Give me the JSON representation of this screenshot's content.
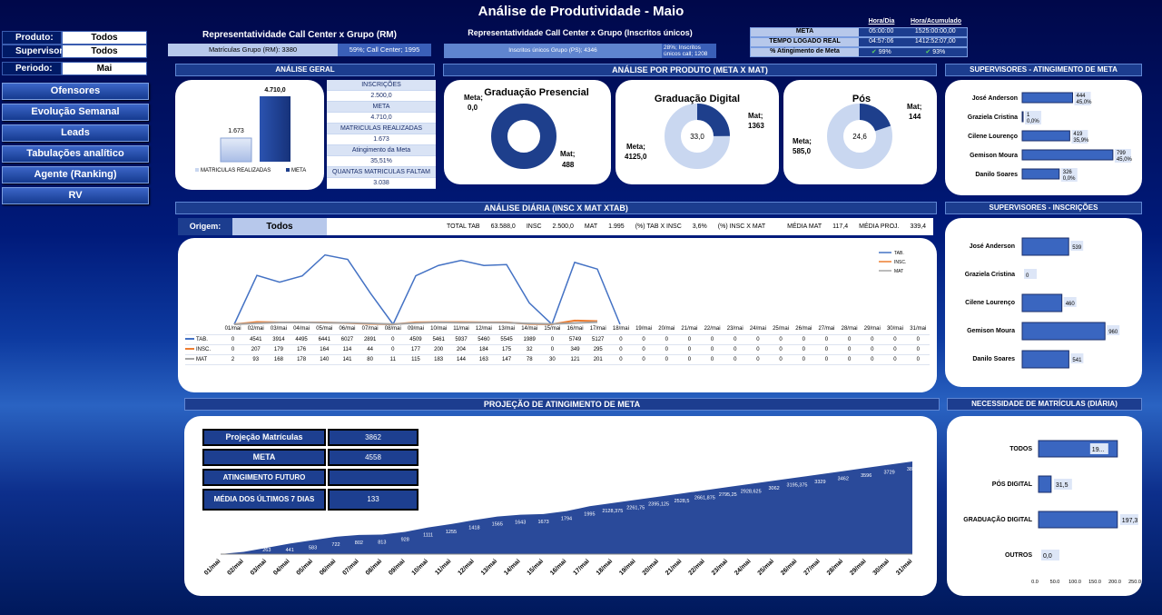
{
  "title": "Análise de Produtividade - Maio",
  "filters": [
    {
      "label": "Produto:",
      "value": "Todos"
    },
    {
      "label": "Supervisor:",
      "value": "Todos"
    },
    {
      "label": "Periodo:",
      "value": "Mai"
    }
  ],
  "nav": [
    "Ofensores",
    "Evolução Semanal",
    "Leads",
    "Tabulações analítico",
    "Agente (Ranking)",
    "RV"
  ],
  "rep_rm": {
    "title": "Representatividade  Call Center x Grupo  (RM)",
    "left": "Matrículas Grupo (RM): 3380",
    "right": "59%; Call Center; 1995"
  },
  "rep_ins": {
    "title": "Representatividade Call Center x Grupo (Inscritos únicos)",
    "left": "Inscritos únicos Grupo (PS); 4346",
    "right": "28%; Inscritos únicos call; 1208"
  },
  "meta_tbl": {
    "col1": "Hora/Dia",
    "col2": "Hora/Acumulado",
    "rows": [
      {
        "label": "META",
        "v1": "05:00:00",
        "v2": "1525:00:00,00"
      },
      {
        "label": "TEMPO LOGADO REAL",
        "v1": "04:57:06",
        "v2": "1412:52:07,00"
      },
      {
        "label": "% Atingimento de Meta",
        "v1": "99%",
        "v2": "93%"
      }
    ]
  },
  "hdr": {
    "geral": "ANÁLISE GERAL",
    "produto": "ANÁLISE POR PRODUTO (META X MAT)",
    "sup_meta": "SUPERVISORES - ATINGIMENTO DE META",
    "diaria": "ANÁLISE DIÁRIA (INSC X MAT XTAB)",
    "sup_insc": "SUPERVISORES - INSCRIÇÕES",
    "projecao": "PROJEÇÃO DE ATINGIMENTO DE META",
    "necessidade": "NECESSIDADE DE MATRÍCULAS (DIÁRIA)"
  },
  "geral": {
    "bar1_label": "1.673",
    "bar2_label": "4.710,0",
    "legend1": "MATRICULAS REALIZADAS",
    "legend2": "META",
    "kpis": [
      "INSCRIÇÕES",
      "2.500,0",
      "META",
      "4.710,0",
      "MATRICULAS REALIZADAS",
      "1.673",
      "Atingimento da Meta",
      "35,51%",
      "QUANTAS MATRICULAS FALTAM",
      "3.038"
    ]
  },
  "colors": {
    "dark": "#1e3f8c",
    "mid": "#3a66c0",
    "light": "#c9d7f0",
    "tab": "#4472c4",
    "insc": "#ed7d31",
    "mat": "#a5a5a5"
  },
  "donuts": [
    {
      "title": "Graduação  Presencial",
      "center": "",
      "meta_lbl": "Meta;",
      "meta_val": "0,0",
      "mat_lbl": "Mat;",
      "mat_val": "488",
      "meta": 0,
      "mat": 488
    },
    {
      "title": "Graduação  Digital",
      "center": "33,0",
      "meta_lbl": "Meta;",
      "meta_val": "4125,0",
      "mat_lbl": "Mat;",
      "mat_val": "1363",
      "meta": 4125,
      "mat": 1363
    },
    {
      "title": "Pós",
      "center": "24,6",
      "meta_lbl": "Meta;",
      "meta_val": "585,0",
      "mat_lbl": "Mat;",
      "mat_val": "144",
      "meta": 585,
      "mat": 144
    }
  ],
  "sup_meta": [
    {
      "name": "José Anderson",
      "value": "444",
      "pct": "45,0%",
      "n": 444
    },
    {
      "name": "Graziela Cristina",
      "value": "1",
      "pct": "0,0%",
      "n": 1
    },
    {
      "name": "Cilene Lourenço",
      "value": "419",
      "pct": "35,9%",
      "n": 419
    },
    {
      "name": "Gemison Moura",
      "value": "799",
      "pct": "45,0%",
      "n": 799
    },
    {
      "name": "Danilo Soares",
      "value": "326",
      "pct": "0,0%",
      "n": 326
    }
  ],
  "diaria": {
    "origem_lbl": "Origem:",
    "origem_val": "Todos",
    "stats": [
      {
        "k": "TOTAL TAB",
        "v": "63.588,0"
      },
      {
        "k": "INSC",
        "v": "2.500,0"
      },
      {
        "k": "MAT",
        "v": "1.995"
      },
      {
        "k": "(%) TAB X INSC",
        "v": "3,6%"
      },
      {
        "k": "(%) INSC X MAT",
        "v": ""
      },
      {
        "k": "MÉDIA MAT",
        "v": "117,4"
      },
      {
        "k": "MÉDIA PROJ.",
        "v": "339,4"
      }
    ],
    "legend": [
      "TAB.",
      "INSC.",
      "MAT"
    ]
  },
  "chart_data": [
    {
      "type": "line",
      "x": [
        "01/mai",
        "02/mai",
        "03/mai",
        "04/mai",
        "05/mai",
        "06/mai",
        "07/mai",
        "08/mai",
        "09/mai",
        "10/mai",
        "11/mai",
        "12/mai",
        "13/mai",
        "14/mai",
        "15/mai",
        "16/mai",
        "17/mai",
        "18/mai",
        "19/mai",
        "20/mai",
        "21/mai",
        "22/mai",
        "23/mai",
        "24/mai",
        "25/mai",
        "26/mai",
        "27/mai",
        "28/mai",
        "29/mai",
        "30/mai",
        "31/mai"
      ],
      "series": [
        {
          "name": "TAB.",
          "values": [
            0,
            4541,
            3914,
            4495,
            6441,
            6027,
            2891,
            0,
            4509,
            5461,
            5937,
            5460,
            5545,
            1989,
            0,
            5749,
            5127,
            0,
            0,
            0,
            0,
            0,
            0,
            0,
            0,
            0,
            0,
            0,
            0,
            0,
            0
          ]
        },
        {
          "name": "INSC.",
          "values": [
            0,
            207,
            179,
            176,
            164,
            114,
            44,
            0,
            177,
            200,
            204,
            184,
            175,
            32,
            0,
            349,
            295,
            0,
            0,
            0,
            0,
            0,
            0,
            0,
            0,
            0,
            0,
            0,
            0,
            0,
            0
          ]
        },
        {
          "name": "MAT",
          "values": [
            2,
            93,
            168,
            178,
            140,
            141,
            80,
            11,
            115,
            183,
            144,
            163,
            147,
            78,
            30,
            121,
            201,
            0,
            0,
            0,
            0,
            0,
            0,
            0,
            0,
            0,
            0,
            0,
            0,
            0,
            0
          ]
        }
      ]
    },
    {
      "type": "area",
      "x": [
        "01/mai",
        "02/mai",
        "03/mai",
        "04/mai",
        "05/mai",
        "06/mai",
        "07/mai",
        "08/mai",
        "09/mai",
        "10/mai",
        "11/mai",
        "12/mai",
        "13/mai",
        "14/mai",
        "15/mai",
        "16/mai",
        "17/mai",
        "18/mai",
        "19/mai",
        "20/mai",
        "21/mai",
        "22/mai",
        "23/mai",
        "24/mai",
        "25/mai",
        "26/mai",
        "27/mai",
        "28/mai",
        "29/mai",
        "30/mai",
        "31/mai"
      ],
      "labels": [
        "",
        "95",
        "263",
        "441",
        "583",
        "722",
        "802",
        "813",
        "928",
        "1111",
        "1255",
        "1418",
        "1565",
        "1643",
        "1673",
        "1794",
        "1995",
        "2128,375",
        "2261,75",
        "2395,125",
        "2528,5",
        "2661,875",
        "2795,25",
        "2928,625",
        "3062",
        "3195,375",
        "3329",
        "3462",
        "3596",
        "3729",
        "3862"
      ],
      "values": [
        2,
        95,
        263,
        441,
        583,
        722,
        802,
        813,
        928,
        1111,
        1255,
        1418,
        1565,
        1643,
        1673,
        1794,
        1995,
        2128.375,
        2261.75,
        2395.125,
        2528.5,
        2661.875,
        2795.25,
        2928.625,
        3062,
        3195.375,
        3329,
        3462,
        3596,
        3729,
        3862
      ]
    },
    {
      "type": "bar",
      "orientation": "horizontal",
      "categories": [
        "TODOS",
        "PÓS DIGITAL",
        "GRADUAÇÃO DIGITAL",
        "OUTROS"
      ],
      "values": [
        197.3,
        31.5,
        197.3,
        0
      ],
      "labels": [
        "19...",
        "31,5",
        "197,3",
        "0,0"
      ],
      "xticks": [
        "0.0",
        "50.0",
        "100.0",
        "150.0",
        "200.0",
        "250.0"
      ],
      "xlim": [
        0,
        250
      ]
    }
  ],
  "sup_insc": [
    {
      "name": "José Anderson",
      "value": "539",
      "n": 539
    },
    {
      "name": "Graziela Cristina",
      "value": "0",
      "n": 0
    },
    {
      "name": "Cilene Lourenço",
      "value": "460",
      "n": 460
    },
    {
      "name": "Gemison Moura",
      "value": "960",
      "n": 960
    },
    {
      "name": "Danilo Soares",
      "value": "541",
      "n": 541
    }
  ],
  "projecao": [
    {
      "label": "Projeção Matrículas",
      "value": "3862"
    },
    {
      "label": "META",
      "value": "4558"
    },
    {
      "label": "ATINGIMENTO FUTURO",
      "value": ""
    },
    {
      "label": "MÉDIA DOS ÚLTIMOS 7 DIAS",
      "value": "133"
    }
  ]
}
